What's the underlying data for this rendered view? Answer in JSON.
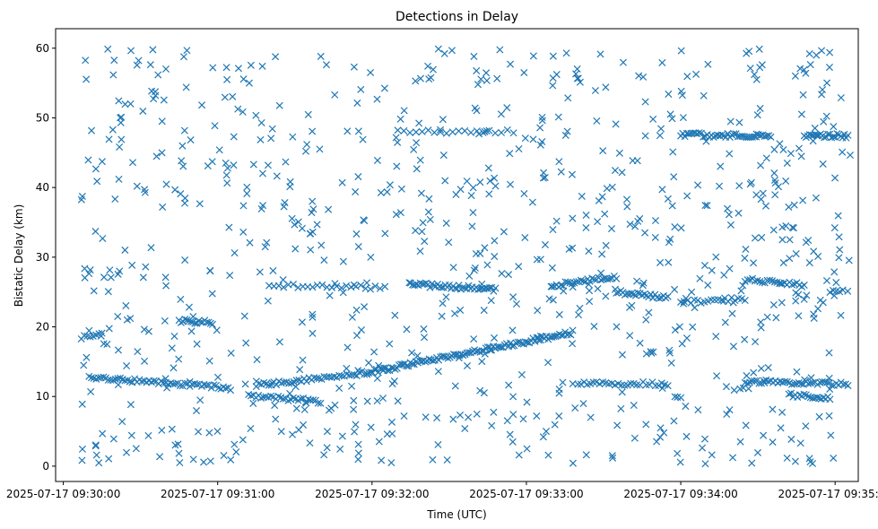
{
  "chart_data": {
    "type": "scatter",
    "title": "Detections in Delay",
    "xlabel": "Time (UTC)",
    "ylabel": "Bistatic Delay (km)",
    "marker": "x",
    "color": "#1f77b4",
    "grid": false,
    "xlim": [
      "2025-07-17 09:29:57",
      "2025-07-17 09:35:09"
    ],
    "ylim": [
      -2.2,
      62.8
    ],
    "x_ticks": [
      "2025-07-17 09:30:00",
      "2025-07-17 09:31:00",
      "2025-07-17 09:32:00",
      "2025-07-17 09:33:00",
      "2025-07-17 09:34:00",
      "2025-07-17 09:35:00"
    ],
    "y_ticks": [
      0,
      10,
      20,
      30,
      40,
      50,
      60
    ],
    "tracks": [
      {
        "x0": "2025-07-17 09:30:07",
        "x1": "2025-07-17 09:30:15",
        "y0": 18.5,
        "y1": 19.0,
        "count": 8
      },
      {
        "x0": "2025-07-17 09:30:10",
        "x1": "2025-07-17 09:31:05",
        "y0": 12.8,
        "y1": 11.2,
        "count": 60
      },
      {
        "x0": "2025-07-17 09:30:45",
        "x1": "2025-07-17 09:30:58",
        "y0": 20.9,
        "y1": 20.6,
        "count": 18
      },
      {
        "x0": "2025-07-17 09:31:15",
        "x1": "2025-07-17 09:31:58",
        "y0": 11.6,
        "y1": 13.4,
        "count": 45
      },
      {
        "x0": "2025-07-17 09:31:12",
        "x1": "2025-07-17 09:31:40",
        "y0": 10.1,
        "y1": 9.3,
        "count": 30
      },
      {
        "x0": "2025-07-17 09:31:58",
        "x1": "2025-07-17 09:33:18",
        "y0": 13.4,
        "y1": 19.2,
        "count": 110
      },
      {
        "x0": "2025-07-17 09:31:20",
        "x1": "2025-07-17 09:32:05",
        "y0": 26.0,
        "y1": 25.6,
        "count": 25
      },
      {
        "x0": "2025-07-17 09:32:15",
        "x1": "2025-07-17 09:32:48",
        "y0": 26.1,
        "y1": 25.4,
        "count": 45
      },
      {
        "x0": "2025-07-17 09:32:10",
        "x1": "2025-07-17 09:32:55",
        "y0": 48.0,
        "y1": 48.0,
        "count": 20
      },
      {
        "x0": "2025-07-17 09:33:10",
        "x1": "2025-07-17 09:33:35",
        "y0": 25.9,
        "y1": 27.2,
        "count": 30
      },
      {
        "x0": "2025-07-17 09:33:35",
        "x1": "2025-07-17 09:33:55",
        "y0": 25.0,
        "y1": 24.2,
        "count": 25
      },
      {
        "x0": "2025-07-17 09:33:20",
        "x1": "2025-07-17 09:33:55",
        "y0": 12.0,
        "y1": 11.8,
        "count": 30
      },
      {
        "x0": "2025-07-17 09:34:00",
        "x1": "2025-07-17 09:34:25",
        "y0": 23.5,
        "y1": 24.0,
        "count": 20
      },
      {
        "x0": "2025-07-17 09:34:25",
        "x1": "2025-07-17 09:34:48",
        "y0": 26.8,
        "y1": 26.0,
        "count": 25
      },
      {
        "x0": "2025-07-17 09:34:00",
        "x1": "2025-07-17 09:34:35",
        "y0": 47.6,
        "y1": 47.4,
        "count": 45
      },
      {
        "x0": "2025-07-17 09:34:48",
        "x1": "2025-07-17 09:35:05",
        "y0": 47.5,
        "y1": 47.4,
        "count": 25
      },
      {
        "x0": "2025-07-17 09:34:25",
        "x1": "2025-07-17 09:35:05",
        "y0": 12.2,
        "y1": 11.8,
        "count": 45
      },
      {
        "x0": "2025-07-17 09:34:42",
        "x1": "2025-07-17 09:34:58",
        "y0": 10.2,
        "y1": 9.8,
        "count": 20
      },
      {
        "x0": "2025-07-17 09:34:58",
        "x1": "2025-07-17 09:35:03",
        "y0": 25.1,
        "y1": 25.0,
        "count": 5
      }
    ],
    "clutter": {
      "x_range": [
        "2025-07-17 09:30:07",
        "2025-07-17 09:35:06"
      ],
      "y_range": [
        0.3,
        59.9
      ],
      "count": 850
    }
  }
}
